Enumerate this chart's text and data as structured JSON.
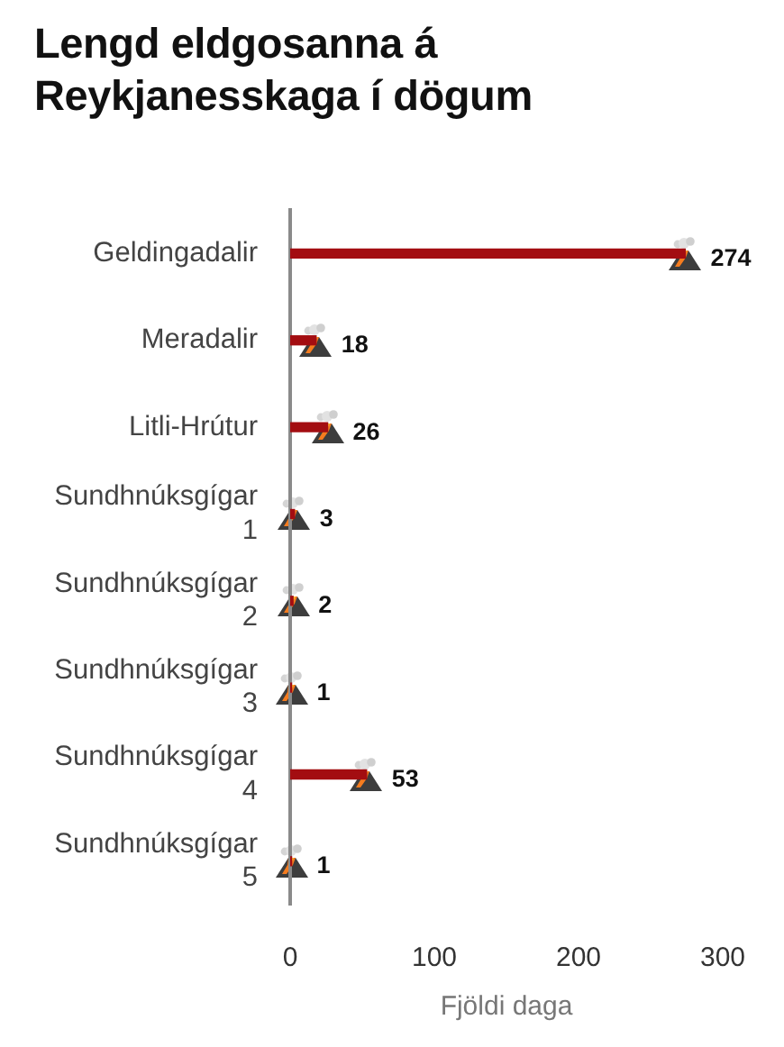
{
  "chart_data": {
    "type": "bar",
    "orientation": "horizontal",
    "title": "Lengd eldgosanna á Reykjanesskaga í dögum",
    "xlabel": "Fjöldi daga",
    "categories": [
      "Geldingadalir",
      "Meradalir",
      "Litli-Hrútur",
      "Sundhnúksgígar 1",
      "Sundhnúksgígar 2",
      "Sundhnúksgígar 3",
      "Sundhnúksgígar 4",
      "Sundhnúksgígar 5"
    ],
    "values": [
      274,
      18,
      26,
      3,
      2,
      1,
      53,
      1
    ],
    "color": "#a30d11",
    "xlim": [
      0,
      300
    ],
    "xticks": [
      0,
      100,
      200,
      300
    ],
    "data_labels": true,
    "grid": false,
    "legend": false
  }
}
